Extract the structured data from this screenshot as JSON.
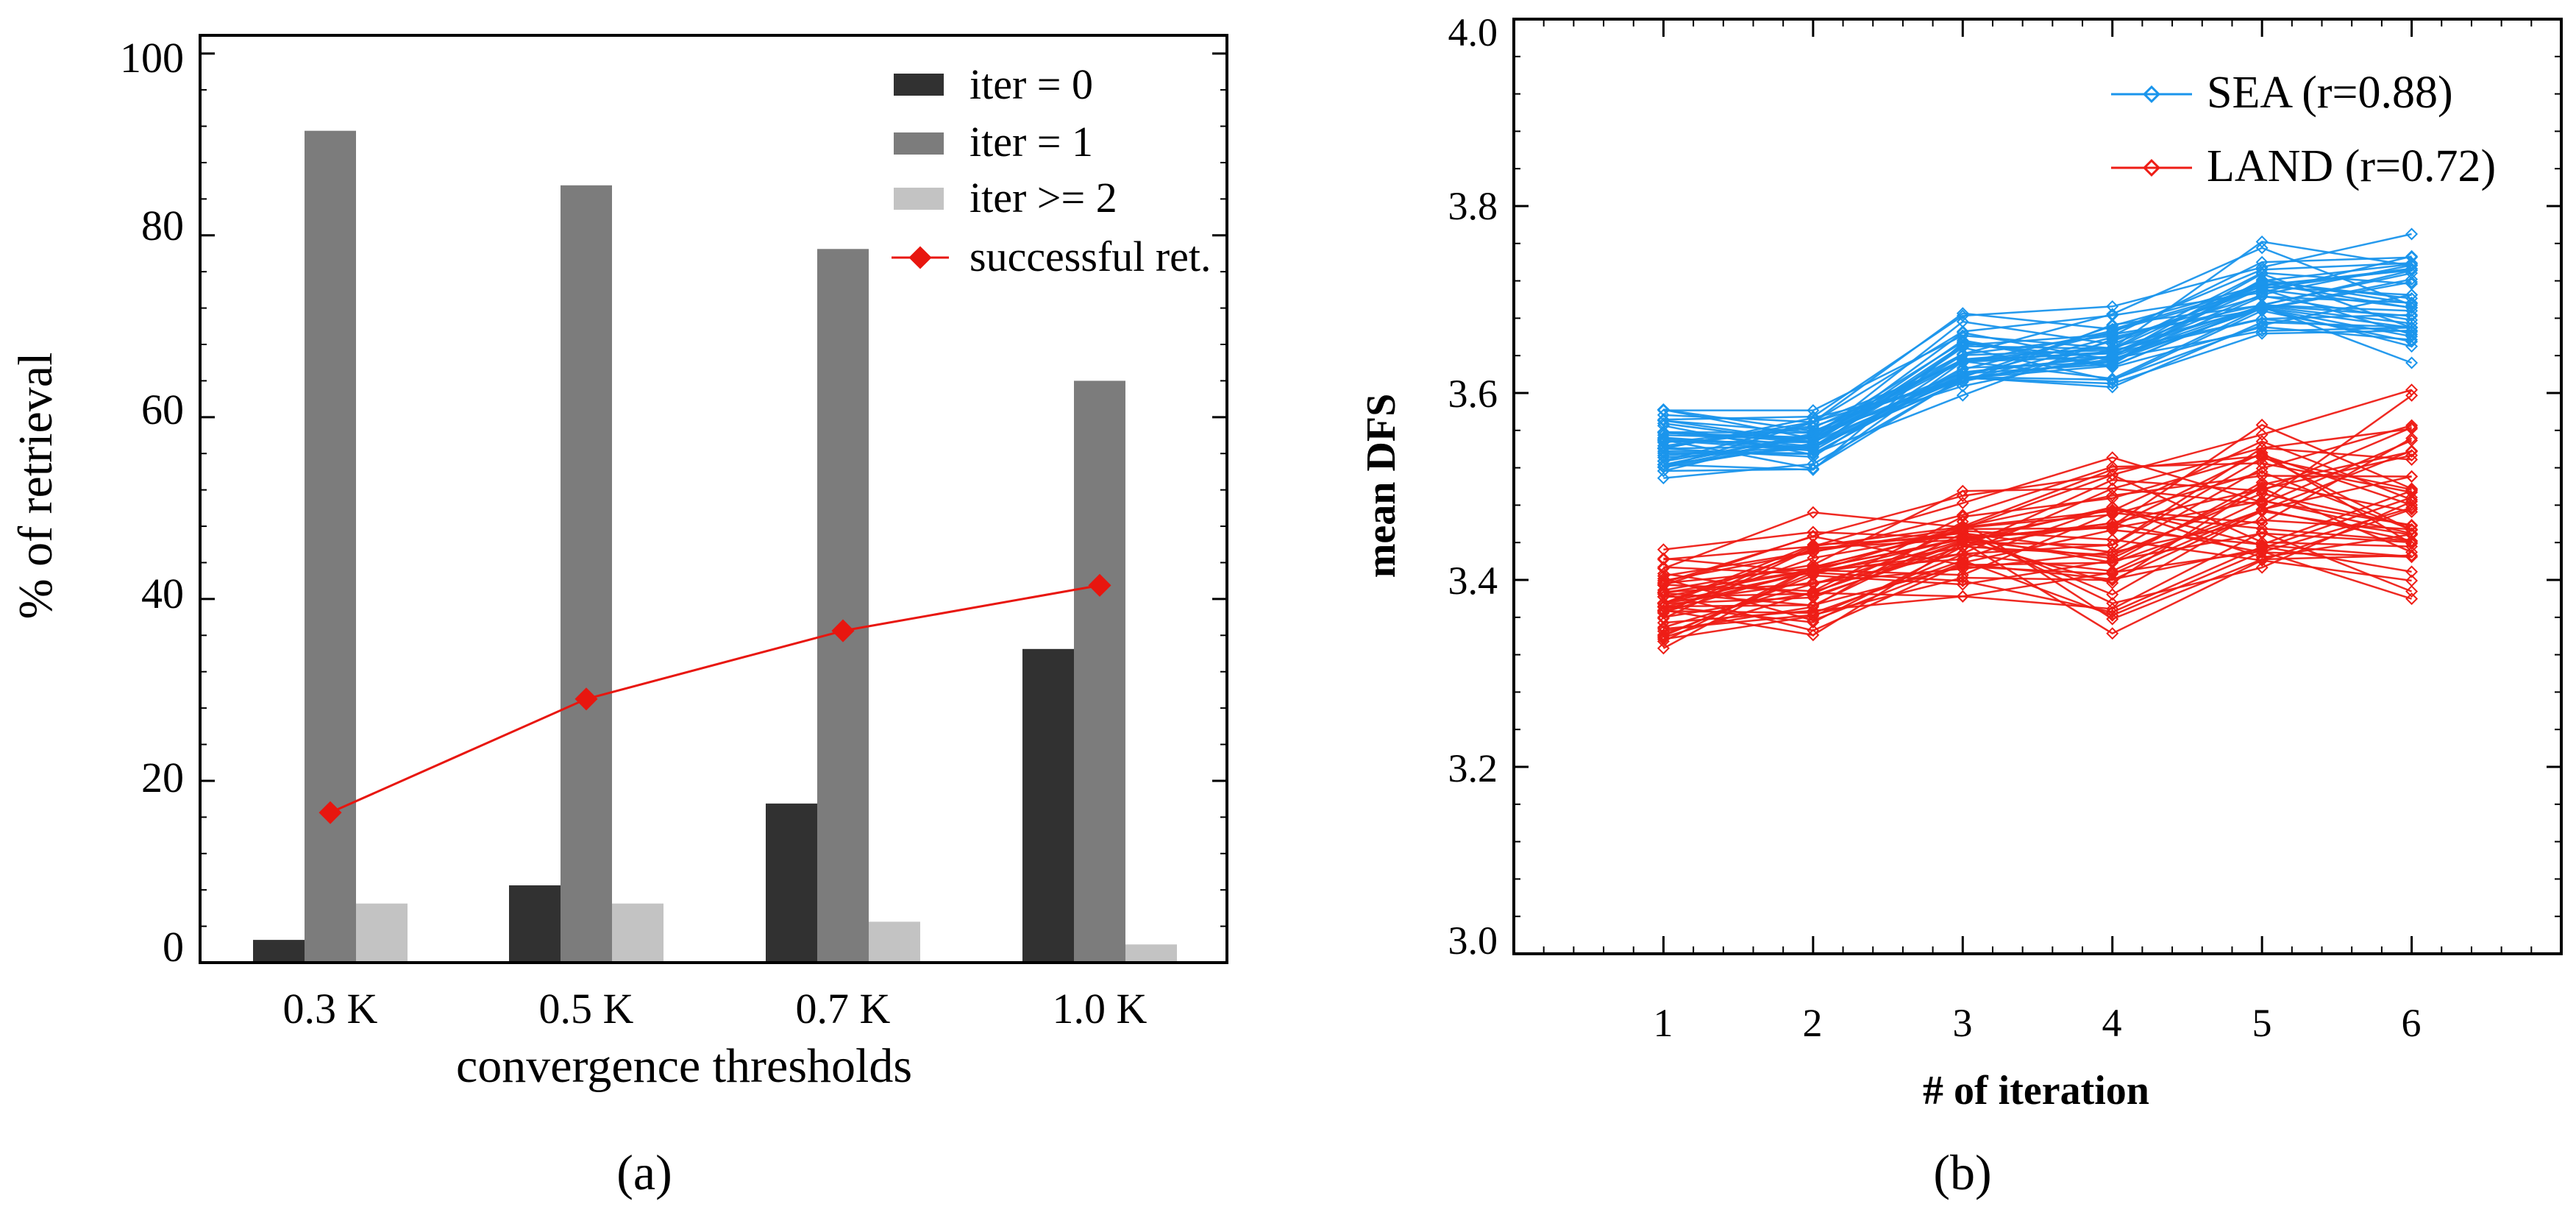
{
  "colors": {
    "iter0": "#313131",
    "iter1": "#7c7c7c",
    "iter2": "#c3c3c3",
    "success": "#e8160f",
    "sea": "#1a95ec",
    "land": "#ee1d16"
  },
  "chart_data": [
    {
      "type": "bar",
      "panel_label": "(a)",
      "xlabel": "convergence thresholds",
      "ylabel": "% of retrieval",
      "categories": [
        "0.3 K",
        "0.5 K",
        "0.7 K",
        "1.0 K"
      ],
      "ylim": [
        0,
        100
      ],
      "yticks": [
        "0",
        "20",
        "40",
        "60",
        "80",
        "100"
      ],
      "series": [
        {
          "name": "iter = 0",
          "values": [
            2.5,
            8.5,
            17.5,
            34.5
          ]
        },
        {
          "name": "iter = 1",
          "values": [
            91.5,
            85.5,
            78.5,
            64.0
          ]
        },
        {
          "name": "iter >= 2",
          "values": [
            6.5,
            6.5,
            4.5,
            2.0
          ]
        }
      ],
      "line_series": {
        "name": "successful ret.",
        "values": [
          16.5,
          29.0,
          36.5,
          41.5
        ]
      },
      "legend": "top-right"
    },
    {
      "type": "line",
      "panel_label": "(b)",
      "xlabel": "# of iteration",
      "ylabel": "mean DFS",
      "x": [
        1,
        2,
        3,
        4,
        5,
        6
      ],
      "xlim": [
        0,
        7
      ],
      "ylim": [
        3.0,
        4.0
      ],
      "yticks": [
        "3.0",
        "3.2",
        "3.4",
        "3.6",
        "3.8",
        "4.0"
      ],
      "xticks": [
        "1",
        "2",
        "3",
        "4",
        "5",
        "6"
      ],
      "groups": [
        {
          "name": "SEA (r=0.88)",
          "center": [
            3.55,
            3.55,
            3.64,
            3.65,
            3.71,
            3.7
          ],
          "spread": [
            0.055,
            0.04,
            0.06,
            0.05,
            0.055,
            0.075
          ],
          "count": 40
        },
        {
          "name": "LAND (r=0.72)",
          "center": [
            3.38,
            3.41,
            3.44,
            3.45,
            3.49,
            3.49
          ],
          "spread": [
            0.06,
            0.085,
            0.07,
            0.12,
            0.09,
            0.12
          ],
          "count": 45
        }
      ],
      "legend": "top-right"
    }
  ]
}
